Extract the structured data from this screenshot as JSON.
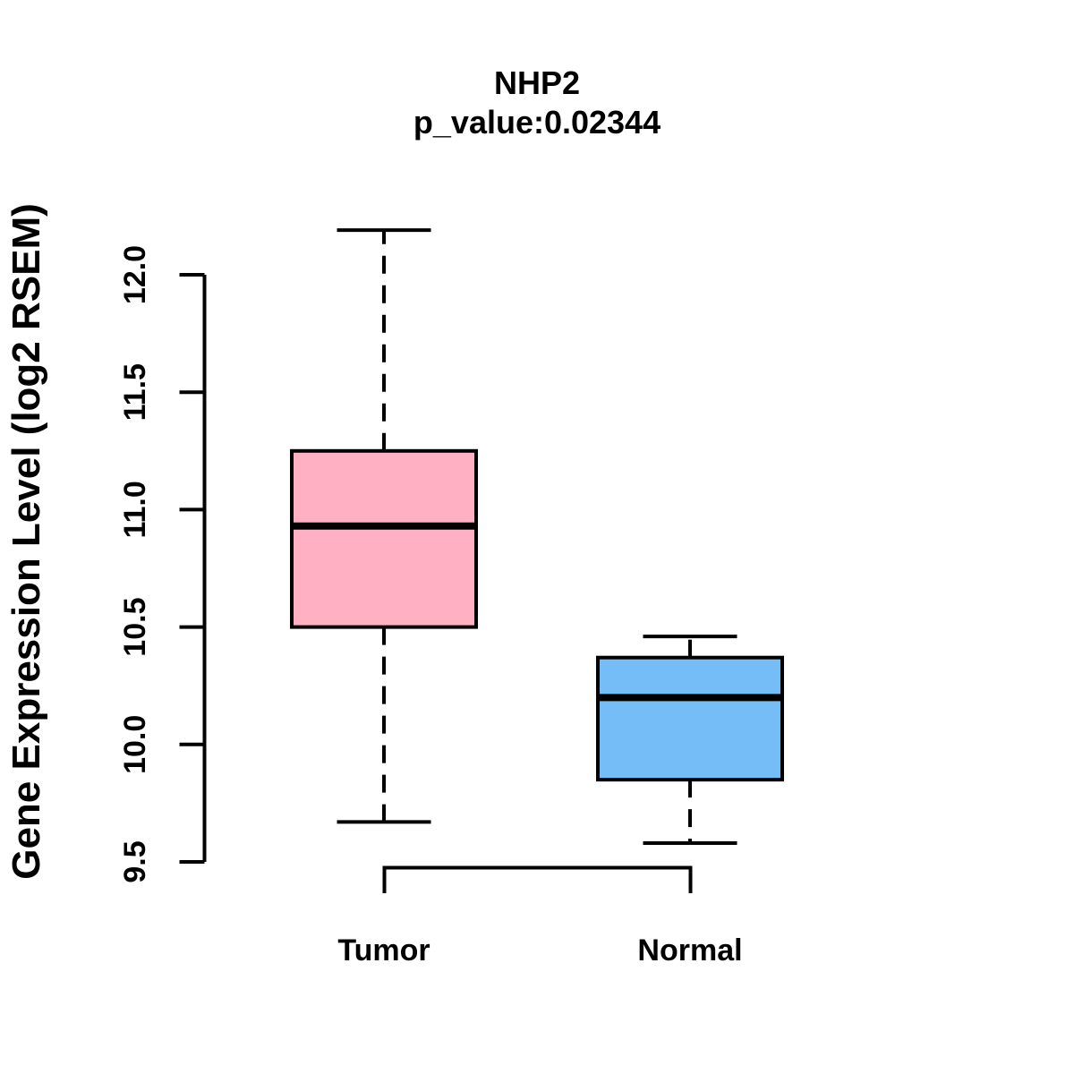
{
  "title": "NHP2",
  "subtitle": "p_value:0.02344",
  "ylabel": "Gene Expression Level (log2 RSEM)",
  "chart_data": {
    "type": "boxplot",
    "title": "NHP2",
    "subtitle": "p_value:0.02344",
    "ylabel": "Gene Expression Level (log2 RSEM)",
    "xlabel": "",
    "categories": [
      "Tumor",
      "Normal"
    ],
    "y_ticks": [
      "9.5",
      "10.0",
      "10.5",
      "11.0",
      "11.5",
      "12.0"
    ],
    "ylim": [
      9.5,
      12.0
    ],
    "grid": false,
    "legend": "none",
    "series": [
      {
        "name": "Tumor",
        "color": "#FFB1C3",
        "lower_whisker": 9.67,
        "q1": 10.5,
        "median": 10.93,
        "q3": 11.25,
        "upper_whisker": 12.19
      },
      {
        "name": "Normal",
        "color": "#75BDF7",
        "lower_whisker": 9.58,
        "q1": 9.85,
        "median": 10.2,
        "q3": 10.37,
        "upper_whisker": 10.46
      }
    ],
    "colors": {
      "box_border": "#000000",
      "median_line": "#000000",
      "axis": "#000000",
      "background": "#ffffff"
    }
  }
}
